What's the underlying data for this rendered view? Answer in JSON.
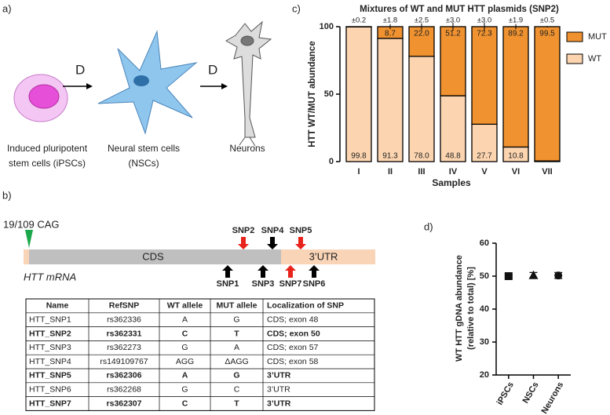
{
  "panel_a": {
    "label": "a)",
    "arrow_1": "D",
    "arrow_2": "D",
    "cells": [
      {
        "lines": [
          "Induced pluripotent",
          "stem cells (iPSCs)"
        ]
      },
      {
        "lines": [
          "Neural stem cells",
          "(NSCs)"
        ]
      },
      {
        "lines": [
          "Neurons"
        ]
      }
    ]
  },
  "panel_b": {
    "label": "b)",
    "cag": "19/109 CAG",
    "cds": "CDS",
    "utr": "3’UTR",
    "mrna": "HTT mRNA",
    "snps_above": [
      "SNP2",
      "SNP4",
      "SNP5"
    ],
    "snps_below": [
      "SNP1",
      "SNP3",
      "SNP7",
      "SNP6"
    ],
    "table": {
      "header": [
        "Name",
        "RefSNP",
        "WT allele",
        "MUT allele",
        "Localization of SNP"
      ],
      "rows": [
        {
          "cells": [
            "HTT_SNP1",
            "rs362336",
            "A",
            "G",
            "CDS; exon 48"
          ],
          "bold": false
        },
        {
          "cells": [
            "HTT_SNP2",
            "rs362331",
            "C",
            "T",
            "CDS; exon 50"
          ],
          "bold": true
        },
        {
          "cells": [
            "HTT_SNP3",
            "rs362273",
            "G",
            "A",
            "CDS; exon 57"
          ],
          "bold": false
        },
        {
          "cells": [
            "HTT_SNP4",
            "rs149109767",
            "AGG",
            "ΔAGG",
            "CDS; exon 58"
          ],
          "bold": false
        },
        {
          "cells": [
            "HTT_SNP5",
            "rs362306",
            "A",
            "G",
            "3’UTR"
          ],
          "bold": true
        },
        {
          "cells": [
            "HTT_SNP6",
            "rs362268",
            "G",
            "C",
            "3’UTR"
          ],
          "bold": false
        },
        {
          "cells": [
            "HTT_SNP7",
            "rs362307",
            "C",
            "T",
            "3’UTR"
          ],
          "bold": true
        }
      ]
    }
  },
  "chart_data": [
    {
      "type": "stacked_bar",
      "panel_label": "c)",
      "title": "Mixtures of WT and MUT HTT plasmids (SNP2)",
      "xlabel": "Samples",
      "ylabel": "HTT WT/MUT abundance",
      "categories": [
        "I",
        "II",
        "III",
        "IV",
        "V",
        "VI",
        "VII"
      ],
      "series": [
        {
          "name": "WT",
          "color": "#fcd5b0",
          "values": [
            99.8,
            91.3,
            78.0,
            48.8,
            27.7,
            10.8,
            0.5
          ],
          "value_labels": [
            "99.8",
            "91.3",
            "78.0",
            "48.8",
            "27.7",
            "10.8",
            null
          ]
        },
        {
          "name": "MUT",
          "color": "#f0922f",
          "values": [
            0.2,
            8.7,
            22.0,
            51.2,
            72.3,
            89.2,
            99.5
          ],
          "value_labels": [
            null,
            "8.7",
            "22.0",
            "51.2",
            "72.3",
            "89.2",
            "99.5"
          ]
        }
      ],
      "errors": [
        0.2,
        1.8,
        2.5,
        3.0,
        3.0,
        1.9,
        0.5
      ],
      "error_labels": [
        "±0.2",
        "±1.8",
        "±2.5",
        "±3.0",
        "±3.0",
        "±1.9",
        "±0.5"
      ],
      "ylim": [
        0,
        100
      ],
      "yticks": [
        0,
        50,
        100
      ],
      "legend": "right"
    },
    {
      "type": "dot_error",
      "panel_label": "d)",
      "ylabel_lines": [
        "WT HTT gDNA abundance",
        "(relative to total) [%]"
      ],
      "categories": [
        "iPSCs",
        "NSCs",
        "Neurons"
      ],
      "values": [
        50,
        50.3,
        50.2
      ],
      "errors": [
        0.4,
        0.8,
        0.9
      ],
      "markers": [
        "square",
        "triangle",
        "circle"
      ],
      "color": "#111111",
      "ylim": [
        20,
        60
      ],
      "yticks": [
        20,
        30,
        40,
        50,
        60
      ]
    }
  ]
}
